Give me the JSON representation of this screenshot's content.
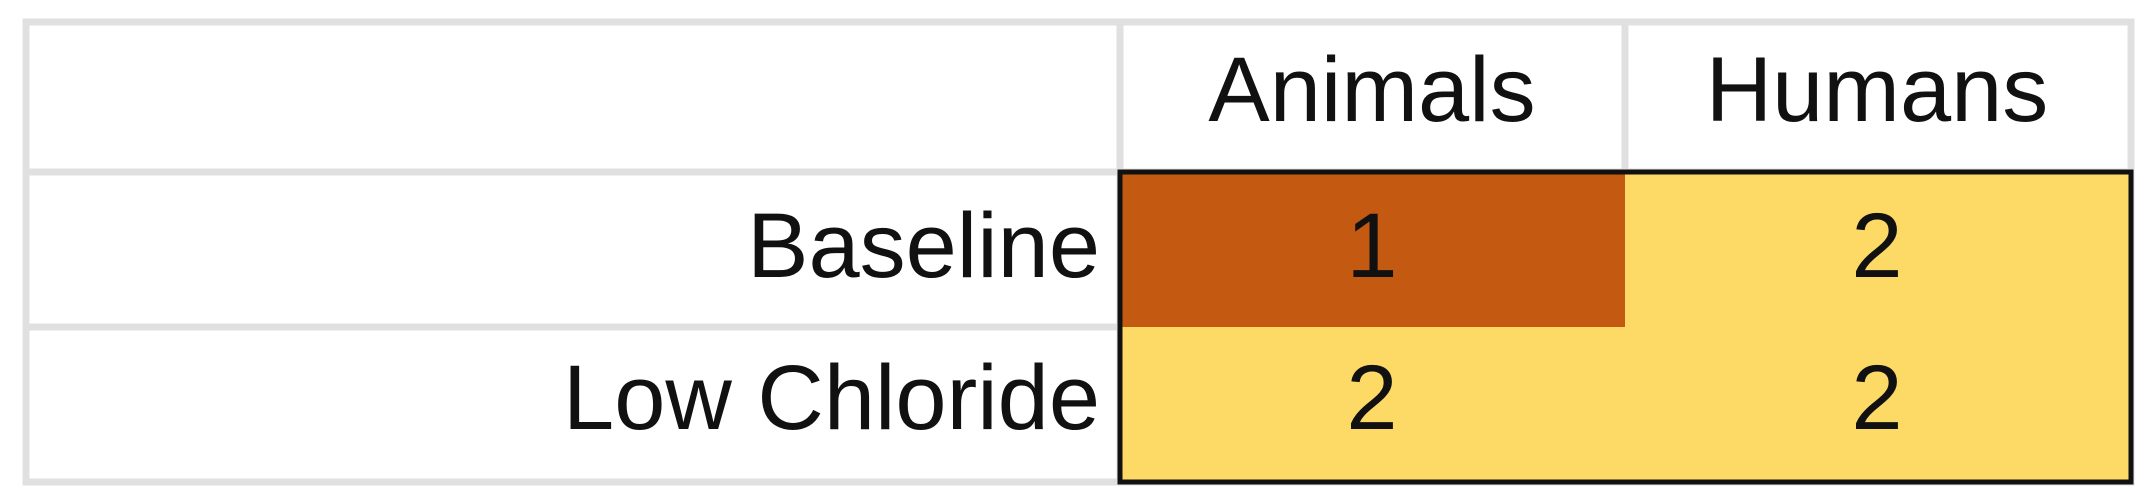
{
  "chart_data": {
    "type": "heatmap",
    "columns": [
      "Animals",
      "Humans"
    ],
    "rows": [
      "Baseline",
      "Low Chloride"
    ],
    "values": [
      [
        1,
        2
      ],
      [
        2,
        2
      ]
    ],
    "colors": {
      "1": "#c45911",
      "2": "#fdd966",
      "grid": "#e0e0e0",
      "frame": "#111111"
    }
  }
}
